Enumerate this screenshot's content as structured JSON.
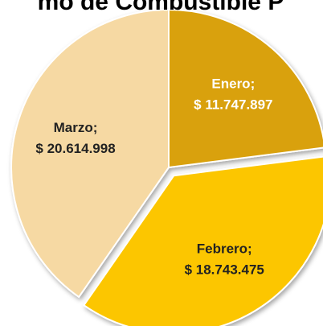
{
  "chart_data": {
    "type": "pie",
    "title": "mo de Combustible P",
    "categories": [
      "Enero;",
      "Febrero;",
      "Marzo;"
    ],
    "values": [
      11747897,
      18743475,
      20614998
    ],
    "value_labels": [
      "$ 11.747.897",
      "$ 18.743.475",
      "$ 20.614.998"
    ],
    "colors": [
      "#d9a10f",
      "#fcc600",
      "#f6d9a3"
    ],
    "exploded": [
      false,
      true,
      false
    ]
  }
}
